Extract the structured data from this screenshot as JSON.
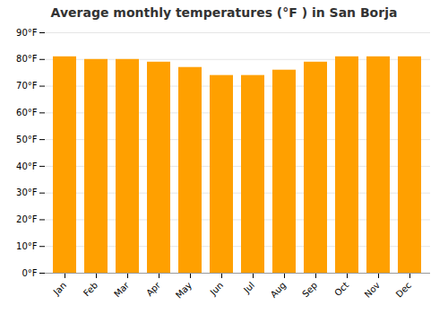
{
  "chart_data": {
    "type": "bar",
    "title": "Average monthly temperatures (°F ) in San Borja",
    "categories": [
      "Jan",
      "Feb",
      "Mar",
      "Apr",
      "May",
      "Jun",
      "Jul",
      "Aug",
      "Sep",
      "Oct",
      "Nov",
      "Dec"
    ],
    "values": [
      81,
      80,
      80,
      79,
      77,
      74,
      74,
      76,
      79,
      81,
      81,
      81
    ],
    "color": "#FFA000",
    "ylim": [
      0,
      90
    ],
    "yticks": [
      {
        "value": 0,
        "label": "0°F"
      },
      {
        "value": 10,
        "label": "10°F"
      },
      {
        "value": 20,
        "label": "20°F"
      },
      {
        "value": 30,
        "label": "30°F"
      },
      {
        "value": 40,
        "label": "40°F"
      },
      {
        "value": 50,
        "label": "50°F"
      },
      {
        "value": 60,
        "label": "60°F"
      },
      {
        "value": 70,
        "label": "70°F"
      },
      {
        "value": 80,
        "label": "80°F"
      },
      {
        "value": 90,
        "label": "90°F"
      }
    ],
    "grid": true
  }
}
